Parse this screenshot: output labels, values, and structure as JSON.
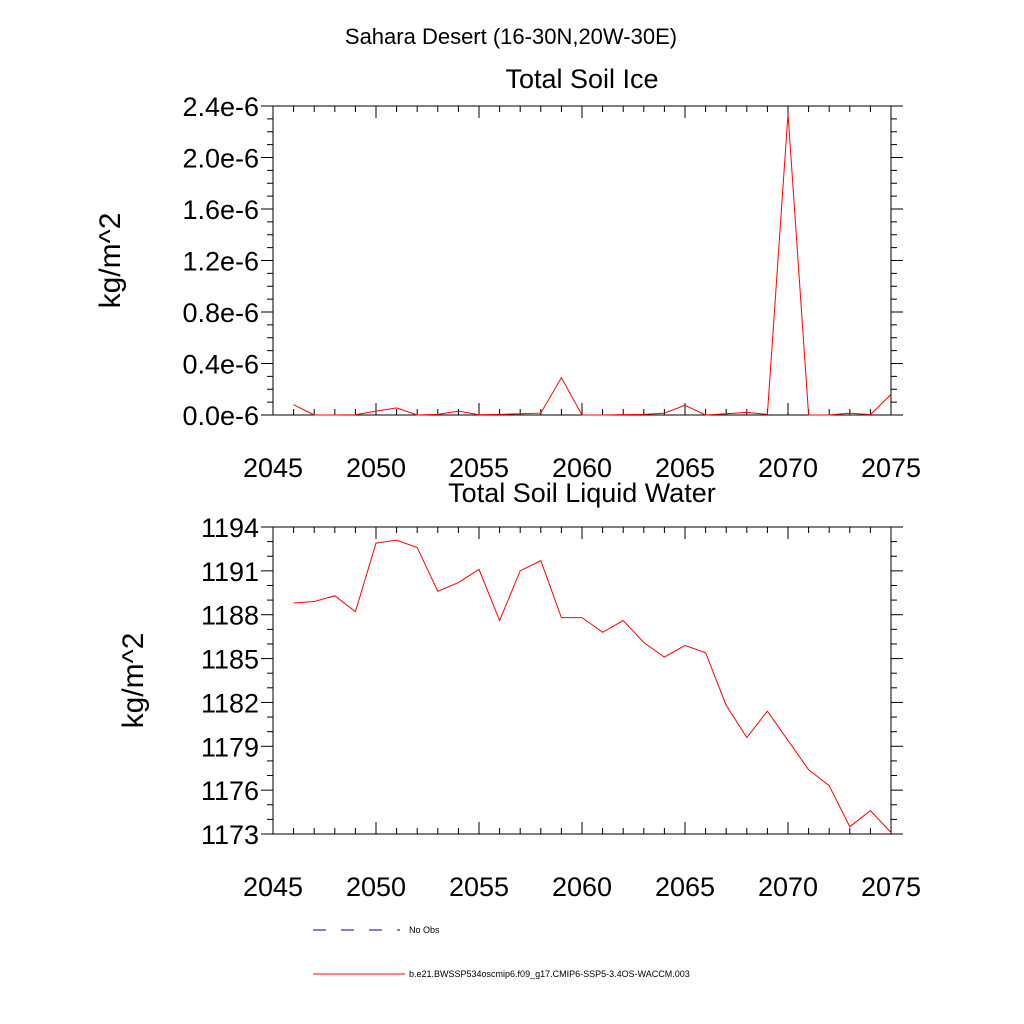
{
  "suptitle": "Sahara Desert (16-30N,20W-30E)",
  "colors": {
    "model": "#ff0000",
    "obs": "#0000a0",
    "axis": "#000000"
  },
  "legend": [
    {
      "label": "No Obs",
      "style": "dashed",
      "color": "#0000a0"
    },
    {
      "label": "b.e21.BWSSP534oscmip6.f09_g17.CMIP6-SSP5-3.4OS-WACCM.003",
      "style": "solid",
      "color": "#ff0000"
    }
  ],
  "chart_data": [
    {
      "type": "line",
      "title": "Total Soil Ice",
      "xlabel": "",
      "ylabel": "kg/m^2",
      "xlim": [
        2045,
        2075
      ],
      "ylim": [
        0,
        2.4e-06
      ],
      "xticks": [
        2045,
        2050,
        2055,
        2060,
        2065,
        2070,
        2075
      ],
      "xtick_labels": [
        "2045",
        "2050",
        "2055",
        "2060",
        "2065",
        "2070",
        "2075"
      ],
      "yticks": [
        0,
        4e-07,
        8e-07,
        1.2e-06,
        1.6e-06,
        2e-06,
        2.4e-06
      ],
      "ytick_labels": [
        "0.0e-6",
        "0.4e-6",
        "0.8e-6",
        "1.2e-6",
        "1.6e-6",
        "2.0e-6",
        "2.4e-6"
      ],
      "x": [
        2046,
        2047,
        2048,
        2049,
        2050,
        2051,
        2052,
        2053,
        2054,
        2055,
        2056,
        2057,
        2058,
        2059,
        2060,
        2061,
        2062,
        2063,
        2064,
        2065,
        2066,
        2067,
        2068,
        2069,
        2070,
        2071,
        2072,
        2073,
        2074,
        2075
      ],
      "series": [
        {
          "name": "b.e21.BWSSP534oscmip6.f09_g17.CMIP6-SSP5-3.4OS-WACCM.003",
          "values": [
            8e-08,
            0,
            0,
            2e-09,
            3e-08,
            5.5e-08,
            0,
            5e-09,
            3e-08,
            2e-09,
            5e-09,
            1e-08,
            1.5e-08,
            2.9e-07,
            0,
            0,
            3e-09,
            5e-09,
            1.5e-08,
            7.5e-08,
            0,
            1e-08,
            2e-08,
            5e-09,
            2.34e-06,
            0,
            0,
            1.5e-08,
            3e-09,
            1.6e-07
          ]
        }
      ]
    },
    {
      "type": "line",
      "title": "Total Soil Liquid Water",
      "xlabel": "",
      "ylabel": "kg/m^2",
      "xlim": [
        2045,
        2075
      ],
      "ylim": [
        1173,
        1194
      ],
      "xticks": [
        2045,
        2050,
        2055,
        2060,
        2065,
        2070,
        2075
      ],
      "xtick_labels": [
        "2045",
        "2050",
        "2055",
        "2060",
        "2065",
        "2070",
        "2075"
      ],
      "yticks": [
        1173,
        1176,
        1179,
        1182,
        1185,
        1188,
        1191,
        1194
      ],
      "ytick_labels": [
        "1173",
        "1176",
        "1179",
        "1182",
        "1185",
        "1188",
        "1191",
        "1194"
      ],
      "x": [
        2046,
        2047,
        2048,
        2049,
        2050,
        2051,
        2052,
        2053,
        2054,
        2055,
        2056,
        2057,
        2058,
        2059,
        2060,
        2061,
        2062,
        2063,
        2064,
        2065,
        2066,
        2067,
        2068,
        2069,
        2070,
        2071,
        2072,
        2073,
        2074,
        2075
      ],
      "series": [
        {
          "name": "b.e21.BWSSP534oscmip6.f09_g17.CMIP6-SSP5-3.4OS-WACCM.003",
          "values": [
            1188.8,
            1188.9,
            1189.3,
            1188.2,
            1192.9,
            1193.1,
            1192.6,
            1189.6,
            1190.2,
            1191.1,
            1187.6,
            1191.0,
            1191.7,
            1187.8,
            1187.8,
            1186.8,
            1187.6,
            1186.1,
            1185.1,
            1185.9,
            1185.4,
            1181.8,
            1179.6,
            1181.4,
            1179.4,
            1177.4,
            1176.3,
            1173.5,
            1174.6,
            1173.1
          ]
        }
      ]
    }
  ]
}
